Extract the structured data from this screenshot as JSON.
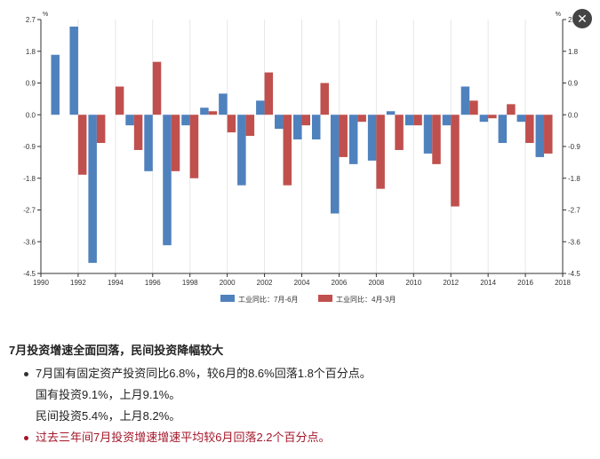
{
  "close_button": {
    "glyph": "✕",
    "icon": "close-icon"
  },
  "chart_data": {
    "type": "bar",
    "x": [
      1991,
      1992,
      1993,
      1994,
      1995,
      1996,
      1997,
      1998,
      1999,
      2000,
      2001,
      2002,
      2003,
      2004,
      2005,
      2006,
      2007,
      2008,
      2009,
      2010,
      2011,
      2012,
      2013,
      2014,
      2015,
      2016,
      2017
    ],
    "series": [
      {
        "name": "工业同比：7月-6月",
        "color": "#4f81bd",
        "values": [
          1.7,
          2.5,
          -4.2,
          0.0,
          -0.3,
          -1.6,
          -3.7,
          -0.3,
          0.2,
          0.6,
          -2.0,
          0.4,
          -0.4,
          -0.7,
          -0.7,
          -2.8,
          -1.4,
          -1.3,
          0.1,
          -0.3,
          -1.1,
          -0.3,
          0.8,
          -0.2,
          -0.8,
          -0.2,
          -1.2
        ]
      },
      {
        "name": "工业同比：4月-3月",
        "color": "#c0504d",
        "values": [
          0.0,
          -1.7,
          -0.8,
          0.8,
          -1.0,
          1.5,
          -1.6,
          -1.8,
          0.1,
          -0.5,
          -0.6,
          1.2,
          -2.0,
          -0.3,
          0.9,
          -1.2,
          -0.2,
          -2.1,
          -1.0,
          -0.3,
          -1.4,
          -2.6,
          0.4,
          -0.1,
          0.3,
          -0.8,
          -1.1
        ]
      }
    ],
    "xlim": [
      1990,
      2018
    ],
    "ylim": [
      -4.5,
      2.7
    ],
    "xticks": [
      1990,
      1992,
      1994,
      1996,
      1998,
      2000,
      2002,
      2004,
      2006,
      2008,
      2010,
      2012,
      2014,
      2016,
      2018
    ],
    "yticks": [
      2.7,
      1.8,
      0.9,
      0.0,
      -0.9,
      -1.8,
      -2.7,
      -3.6,
      -4.5
    ],
    "yunit_left": "%",
    "yunit_right": "%",
    "grid": "vertical",
    "legend": "bottom-center"
  },
  "text": {
    "title": "7月投资增速全面回落，民间投资降幅较大",
    "bullet1": "7月国有固定资产投资同比6.8%，较6月的8.6%回落1.8个百分点。",
    "sub1": "国有投资9.1%，上月9.1%。",
    "sub2": "民间投资5.4%，上月8.2%。",
    "bullet2": "过去三年间7月投资增速增速平均较6月回落2.2个百分点。"
  }
}
